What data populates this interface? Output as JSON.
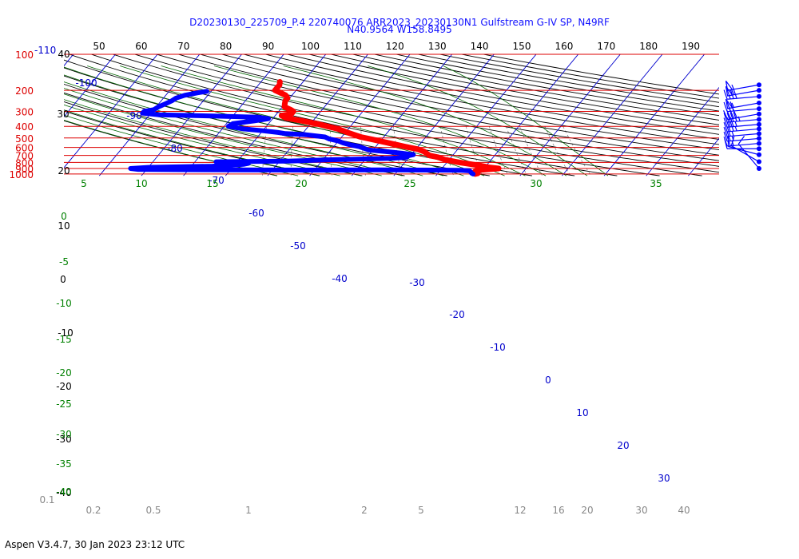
{
  "title_line1": "D20230130_225709_P.4 220740076 ARR2023_20230130N1 Gulfstream G-IV SP, N49RF",
  "title_line2": "N40.9564 W158.8495",
  "footer": "Aspen V3.4.7, 30 Jan 2023  23:12 UTC",
  "colors": {
    "pressure_lines": "#dd0000",
    "isotherms": "#0000cc",
    "dry_adiabats": "#000000",
    "moist_adiabats": "#006400",
    "mixing_ratio": "#888888",
    "temperature": "#ff0000",
    "dewpoint": "#0000ff",
    "labels_blue": "#0000cc",
    "labels_green": "#008000",
    "labels_red": "#dd0000"
  },
  "chart_data": {
    "type": "skew-t",
    "pressure_levels": [
      100,
      200,
      300,
      400,
      500,
      600,
      700,
      800,
      900,
      1000
    ],
    "pressure_level_labels": [
      "100",
      "200",
      "300",
      "400",
      "500",
      "600",
      "700",
      "800",
      "900",
      "1000"
    ],
    "top_extra_label": "-110",
    "top_scale_labels": [
      "50",
      "60",
      "70",
      "80",
      "90",
      "100",
      "110",
      "120",
      "130",
      "140",
      "150",
      "160",
      "170",
      "180",
      "190"
    ],
    "left_scale_labels": [
      "40",
      "30",
      "20",
      "10",
      "0",
      "-10",
      "-20",
      "-30",
      "-40"
    ],
    "isotherm_labels": [
      "-100",
      "-90",
      "-80",
      "-70",
      "-60",
      "-50",
      "-40",
      "-30",
      "-20",
      "-10",
      "0",
      "10",
      "20",
      "30"
    ],
    "moist_labels_top": [
      "5",
      "10",
      "15",
      "20",
      "25",
      "30",
      "35"
    ],
    "moist_labels_left": [
      "0",
      "-5",
      "-10",
      "-15",
      "-20",
      "-25",
      "-30",
      "-35",
      "-40"
    ],
    "mixing_ratio_labels": [
      "0.1",
      "0.2",
      "0.5",
      "1",
      "2",
      "5",
      "12",
      "16",
      "20",
      "30",
      "40"
    ],
    "temperature_profile": [
      {
        "p": 1000,
        "t": 9.0
      },
      {
        "p": 988,
        "t": 9.5
      },
      {
        "p": 970,
        "t": 8.5
      },
      {
        "p": 930,
        "t": 8.5
      },
      {
        "p": 915,
        "t": 11.0
      },
      {
        "p": 900,
        "t": 13.5
      },
      {
        "p": 880,
        "t": 11.0
      },
      {
        "p": 850,
        "t": 8.5
      },
      {
        "p": 800,
        "t": 3.0
      },
      {
        "p": 760,
        "t": -1.0
      },
      {
        "p": 725,
        "t": -3.0
      },
      {
        "p": 700,
        "t": -5.5
      },
      {
        "p": 650,
        "t": -7.5
      },
      {
        "p": 620,
        "t": -9.5
      },
      {
        "p": 600,
        "t": -12.0
      },
      {
        "p": 560,
        "t": -16.5
      },
      {
        "p": 520,
        "t": -21.5
      },
      {
        "p": 490,
        "t": -25.5
      },
      {
        "p": 470,
        "t": -27.5
      },
      {
        "p": 450,
        "t": -29.5
      },
      {
        "p": 420,
        "t": -32.5
      },
      {
        "p": 400,
        "t": -35.5
      },
      {
        "p": 380,
        "t": -38.5
      },
      {
        "p": 360,
        "t": -42.5
      },
      {
        "p": 340,
        "t": -47.0
      },
      {
        "p": 325,
        "t": -48.5
      },
      {
        "p": 315,
        "t": -46.5
      },
      {
        "p": 300,
        "t": -46.5
      },
      {
        "p": 290,
        "t": -47.5
      },
      {
        "p": 275,
        "t": -49.5
      },
      {
        "p": 260,
        "t": -50.0
      },
      {
        "p": 245,
        "t": -50.5
      },
      {
        "p": 232,
        "t": -50.5
      },
      {
        "p": 220,
        "t": -51.5
      },
      {
        "p": 208,
        "t": -53.5
      },
      {
        "p": 200,
        "t": -55.0
      },
      {
        "p": 190,
        "t": -55.0
      },
      {
        "p": 180,
        "t": -55.0
      },
      {
        "p": 170,
        "t": -55.5
      }
    ],
    "dewpoint_profile": [
      {
        "p": 1000,
        "td": 8.5
      },
      {
        "p": 985,
        "td": 8.0
      },
      {
        "p": 960,
        "td": 7.5
      },
      {
        "p": 940,
        "td": 7.0
      },
      {
        "p": 930,
        "td": 5.0
      },
      {
        "p": 928,
        "td": -2.0
      },
      {
        "p": 925,
        "td": -15.0
      },
      {
        "p": 928,
        "td": -30.0
      },
      {
        "p": 920,
        "td": -62.0
      },
      {
        "p": 915,
        "td": -72.0
      },
      {
        "p": 900,
        "td": -74.0
      },
      {
        "p": 880,
        "td": -70.0
      },
      {
        "p": 860,
        "td": -55.0
      },
      {
        "p": 840,
        "td": -50.0
      },
      {
        "p": 830,
        "td": -48.0
      },
      {
        "p": 815,
        "td": -47.0
      },
      {
        "p": 800,
        "td": -48.0
      },
      {
        "p": 790,
        "td": -55.0
      },
      {
        "p": 780,
        "td": -38.0
      },
      {
        "p": 770,
        "td": -33.0
      },
      {
        "p": 760,
        "td": -28.0
      },
      {
        "p": 748,
        "td": -20.0
      },
      {
        "p": 740,
        "td": -14.0
      },
      {
        "p": 728,
        "td": -11.0
      },
      {
        "p": 715,
        "td": -10.5
      },
      {
        "p": 705,
        "td": -10.5
      },
      {
        "p": 690,
        "td": -9.5
      },
      {
        "p": 670,
        "td": -12.5
      },
      {
        "p": 650,
        "td": -16.5
      },
      {
        "p": 630,
        "td": -21.0
      },
      {
        "p": 610,
        "td": -22.5
      },
      {
        "p": 590,
        "td": -24.0
      },
      {
        "p": 570,
        "td": -26.5
      },
      {
        "p": 550,
        "td": -28.5
      },
      {
        "p": 530,
        "td": -30.0
      },
      {
        "p": 510,
        "td": -32.5
      },
      {
        "p": 490,
        "td": -34.0
      },
      {
        "p": 470,
        "td": -39.0
      },
      {
        "p": 460,
        "td": -44.0
      },
      {
        "p": 450,
        "td": -46.0
      },
      {
        "p": 435,
        "td": -50.0
      },
      {
        "p": 420,
        "td": -55.0
      },
      {
        "p": 400,
        "td": -59.0
      },
      {
        "p": 380,
        "td": -58.5
      },
      {
        "p": 360,
        "td": -54.0
      },
      {
        "p": 345,
        "td": -51.0
      },
      {
        "p": 335,
        "td": -54.0
      },
      {
        "p": 328,
        "td": -65.0
      },
      {
        "p": 320,
        "td": -78.0
      },
      {
        "p": 310,
        "td": -82.0
      },
      {
        "p": 300,
        "td": -82.0
      },
      {
        "p": 290,
        "td": -80.0
      },
      {
        "p": 275,
        "td": -79.5
      },
      {
        "p": 260,
        "td": -78.5
      },
      {
        "p": 245,
        "td": -77.5
      },
      {
        "p": 232,
        "td": -77.0
      },
      {
        "p": 220,
        "td": -75.5
      },
      {
        "p": 210,
        "td": -73.0
      },
      {
        "p": 204,
        "td": -71.0
      }
    ],
    "wind_barbs": [
      {
        "p": 180,
        "dir": 260,
        "speed": 55
      },
      {
        "p": 200,
        "dir": 260,
        "speed": 55
      },
      {
        "p": 225,
        "dir": 265,
        "speed": 40
      },
      {
        "p": 255,
        "dir": 260,
        "speed": 55
      },
      {
        "p": 285,
        "dir": 265,
        "speed": 30
      },
      {
        "p": 315,
        "dir": 260,
        "speed": 40
      },
      {
        "p": 350,
        "dir": 265,
        "speed": 45
      },
      {
        "p": 385,
        "dir": 265,
        "speed": 35
      },
      {
        "p": 420,
        "dir": 265,
        "speed": 35
      },
      {
        "p": 460,
        "dir": 265,
        "speed": 25
      },
      {
        "p": 505,
        "dir": 265,
        "speed": 25
      },
      {
        "p": 555,
        "dir": 265,
        "speed": 25
      },
      {
        "p": 615,
        "dir": 270,
        "speed": 10
      },
      {
        "p": 690,
        "dir": 285,
        "speed": 10
      },
      {
        "p": 790,
        "dir": 300,
        "speed": 10
      },
      {
        "p": 900,
        "dir": 320,
        "speed": 10
      }
    ]
  }
}
